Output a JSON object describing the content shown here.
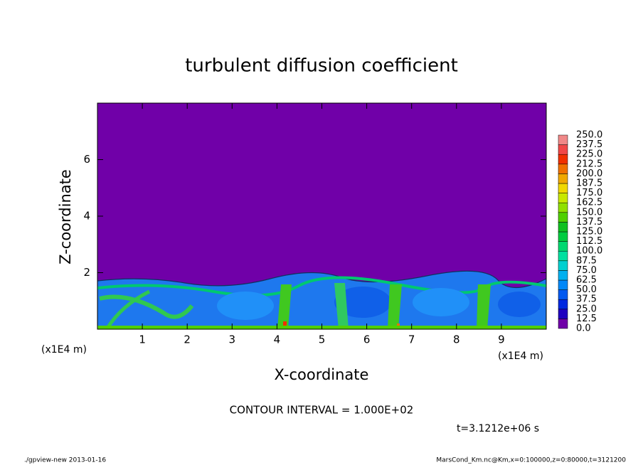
{
  "chart_data": {
    "type": "contour",
    "title": "turbulent diffusion coefficient",
    "x_label": "X-coordinate",
    "y_label": "Z-coordinate",
    "x_unit_left": "(x1E4 m)",
    "x_unit_right": "(x1E4 m)",
    "xlim": [
      0,
      10
    ],
    "ylim": [
      0,
      8
    ],
    "xticks": [
      1,
      2,
      3,
      4,
      5,
      6,
      7,
      8,
      9
    ],
    "yticks": [
      2,
      4,
      6
    ],
    "contour_interval": "CONTOUR INTERVAL = 1.000E+02",
    "time_label": "t=3.1212e+06 s",
    "footer_left": "./gpview-new  2013-01-16",
    "footer_right": "MarsCond_Km.nc@Km,x=0:100000,z=0:80000,t=3121200",
    "colorbar": {
      "levels": [
        {
          "value": 0,
          "label": "0.0"
        },
        {
          "value": 12.5,
          "label": "12.5"
        },
        {
          "value": 25,
          "label": "25.0"
        },
        {
          "value": 37.5,
          "label": "37.5"
        },
        {
          "value": 50,
          "label": "50.0"
        },
        {
          "value": 62.5,
          "label": "62.5"
        },
        {
          "value": 75,
          "label": "75.0"
        },
        {
          "value": 87.5,
          "label": "87.5"
        },
        {
          "value": 100,
          "label": "100.0"
        },
        {
          "value": 112.5,
          "label": "112.5"
        },
        {
          "value": 125,
          "label": "125.0"
        },
        {
          "value": 137.5,
          "label": "137.5"
        },
        {
          "value": 150,
          "label": "150.0"
        },
        {
          "value": 162.5,
          "label": "162.5"
        },
        {
          "value": 175,
          "label": "175.0"
        },
        {
          "value": 187.5,
          "label": "187.5"
        },
        {
          "value": 200,
          "label": "200.0"
        },
        {
          "value": 212.5,
          "label": "212.5"
        },
        {
          "value": 225,
          "label": "225.0"
        },
        {
          "value": 237.5,
          "label": "237.5"
        },
        {
          "value": 250,
          "label": "250.0"
        }
      ],
      "colors": [
        "#7000a8",
        "#2000c0",
        "#0028e0",
        "#0058f0",
        "#0088f8",
        "#00b0f0",
        "#00d0d0",
        "#00e0a0",
        "#00d870",
        "#00cc40",
        "#10c020",
        "#50d000",
        "#90e000",
        "#c8e800",
        "#f0d800",
        "#f0a800",
        "#f07000",
        "#f03000",
        "#f04848",
        "#f08888"
      ]
    }
  }
}
